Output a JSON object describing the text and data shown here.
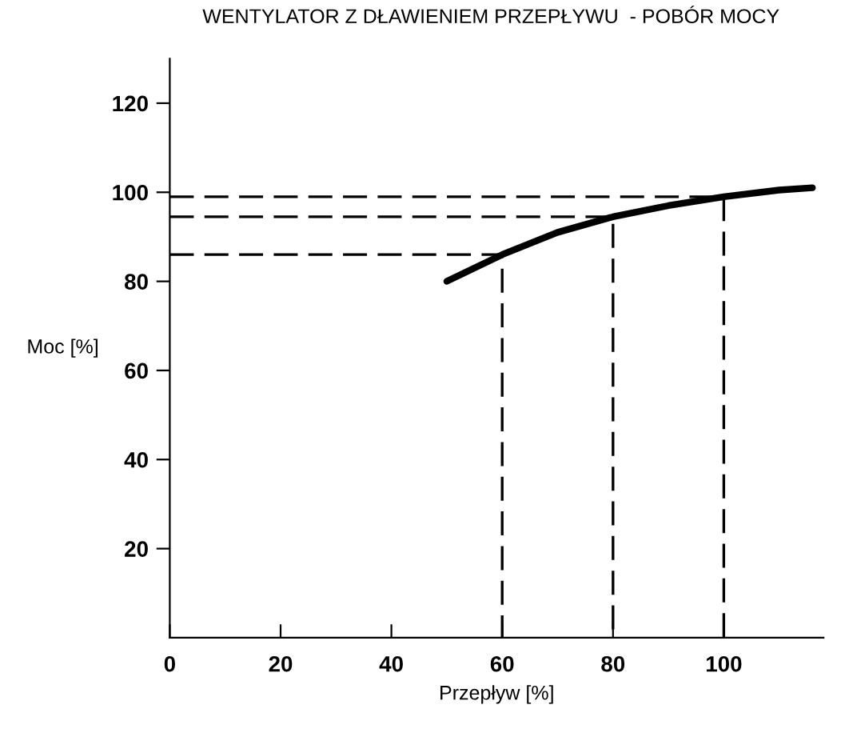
{
  "chart_data": {
    "type": "line",
    "title": "WENTYLATOR Z DŁAWIENIEM PRZEPŁYWU  - POBÓR MOCY",
    "xlabel": "Przepływ [%]",
    "ylabel": "Moc [%]",
    "series": [
      {
        "color": "#000000",
        "x": [
          50,
          60,
          70,
          80,
          90,
          100,
          110,
          116
        ],
        "values": [
          80,
          86,
          91,
          94.5,
          97,
          99,
          100.5,
          101
        ],
        "line_style": "solid"
      },
      {
        "color": "#000000",
        "x": [
          0,
          60,
          60
        ],
        "values": [
          86,
          86,
          0
        ],
        "line_style": "dashed"
      },
      {
        "color": "#000000",
        "x": [
          0,
          80,
          80
        ],
        "values": [
          94.5,
          94.5,
          0
        ],
        "line_style": "dashed"
      },
      {
        "color": "#000000",
        "x": [
          0,
          100,
          100
        ],
        "values": [
          99,
          99,
          0
        ],
        "line_style": "dashed"
      }
    ],
    "xlim": [
      0,
      118
    ],
    "xticks": [
      0,
      20,
      40,
      60,
      80,
      100
    ],
    "ylim": [
      0,
      130
    ],
    "yticks": [
      20,
      40,
      60,
      80,
      100,
      120
    ],
    "grid": false,
    "legend": false
  }
}
